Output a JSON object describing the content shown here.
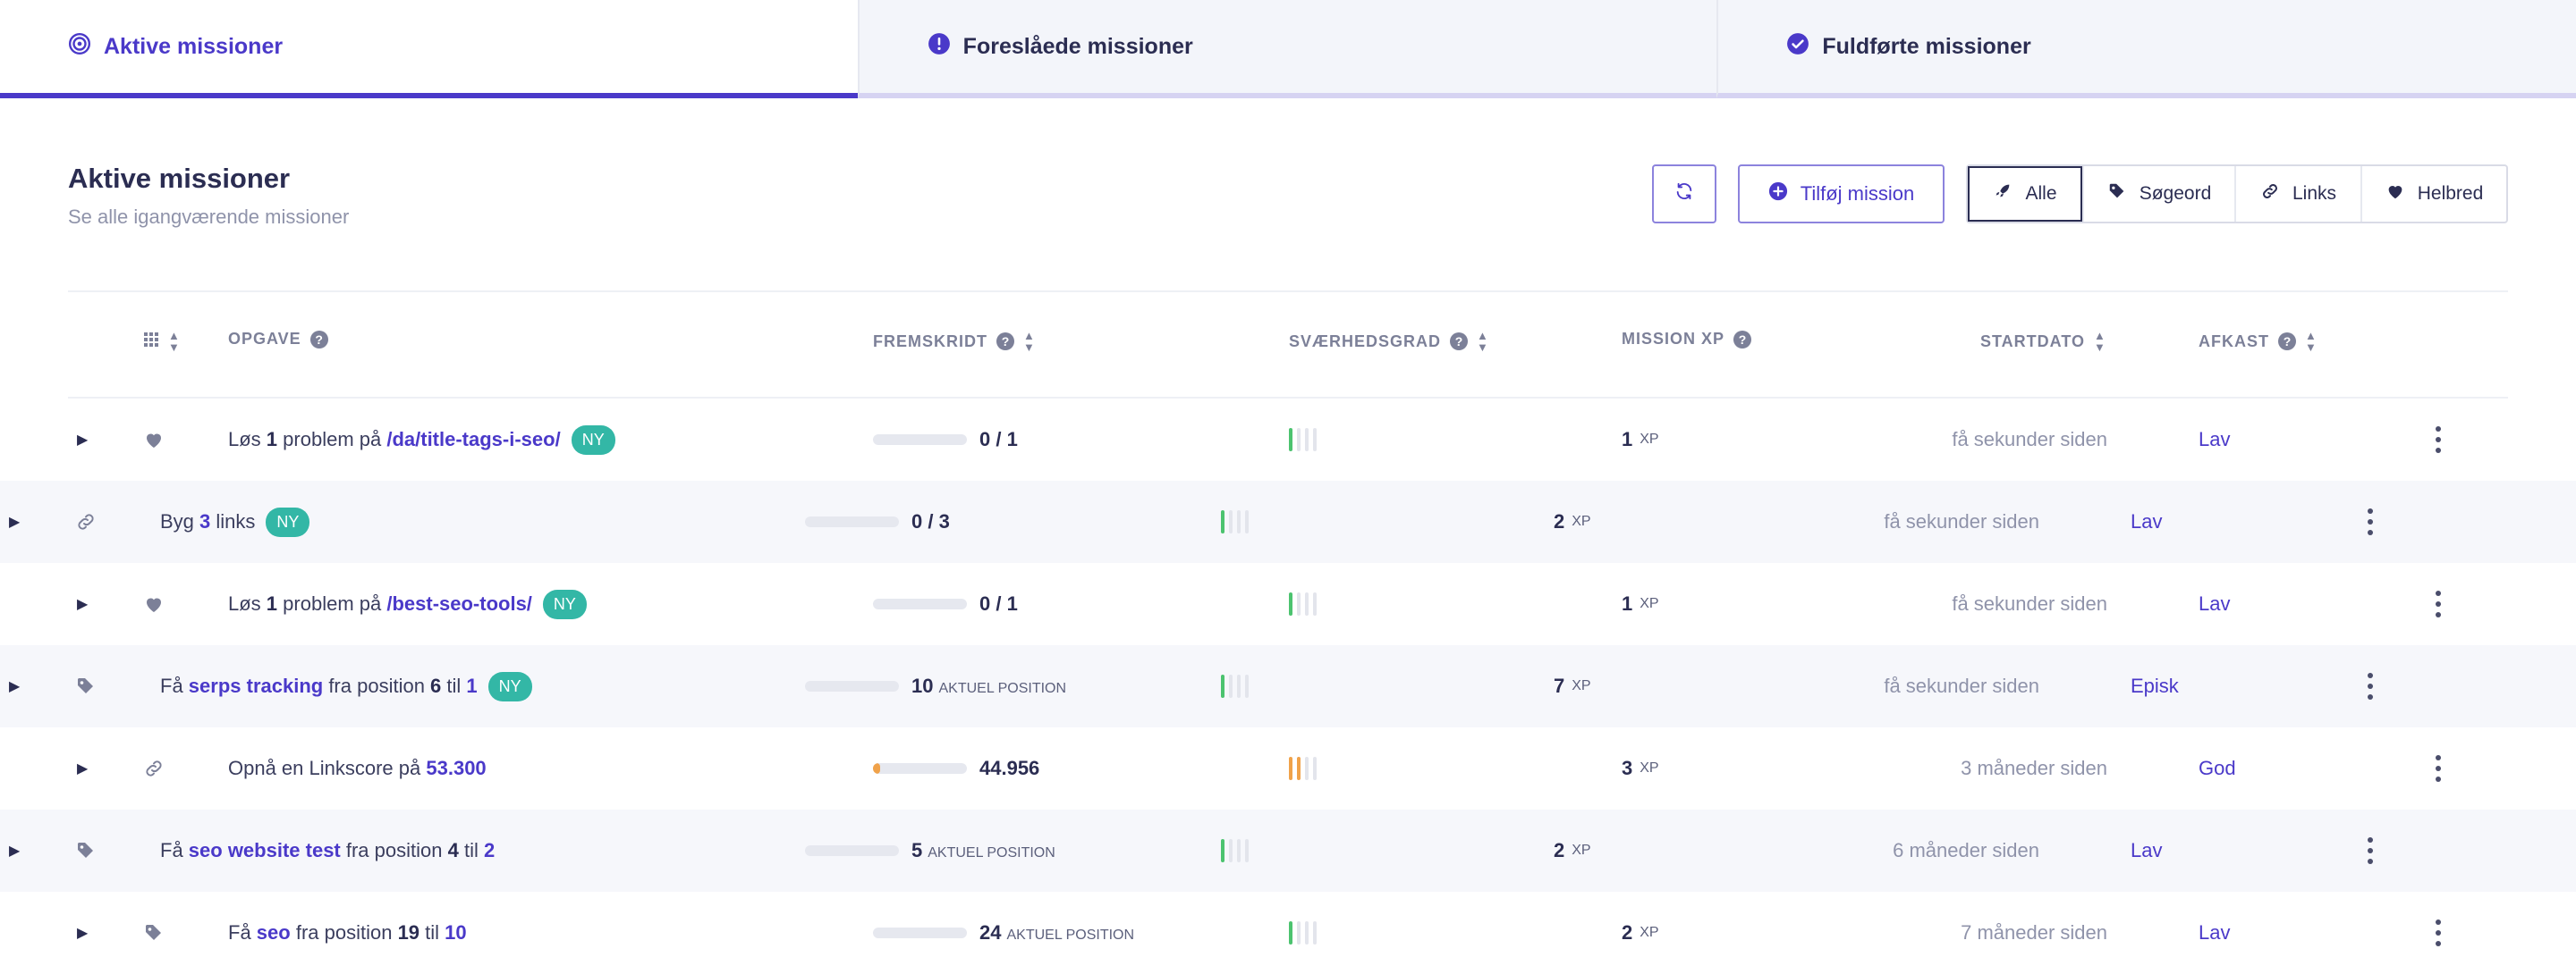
{
  "tabs": [
    {
      "label": "Aktive missioner",
      "active": true,
      "icon": "target-icon"
    },
    {
      "label": "Foreslåede missioner",
      "active": false,
      "icon": "alert-circle-icon"
    },
    {
      "label": "Fuldførte missioner",
      "active": false,
      "icon": "check-circle-icon"
    }
  ],
  "header": {
    "title": "Aktive missioner",
    "subtitle": "Se alle igangværende missioner"
  },
  "toolbar": {
    "add_label": "Tilføj mission",
    "filters": [
      "Alle",
      "Søgeord",
      "Links",
      "Helbred"
    ],
    "active_filter": "Alle"
  },
  "columns": {
    "task": "OPGAVE",
    "progress": "FREMSKRIDT",
    "difficulty": "SVÆRHEDSGRAD",
    "xp": "MISSION XP",
    "start": "STARTDATO",
    "return": "AFKAST"
  },
  "colors": {
    "accent": "#4a39c9",
    "badge": "#33b7a6",
    "difficulty_green": "#4cc36f",
    "difficulty_orange": "#f0a24a"
  },
  "rows": [
    {
      "icon": "heart-icon",
      "task": [
        [
          "Løs ",
          "t"
        ],
        [
          "1",
          "n"
        ],
        [
          " problem på ",
          "t"
        ],
        [
          "/da/title-tags-i-seo/",
          "h"
        ]
      ],
      "badge": "NY",
      "progress_value": "0",
      "progress_target": "/ 1",
      "progress_unit": "",
      "progress_fraction": 0,
      "difficulty_level": 1,
      "difficulty_color": "#4cc36f",
      "xp": "1",
      "xp_unit": "XP",
      "start": "få sekunder siden",
      "return": "Lav"
    },
    {
      "icon": "link-icon",
      "task": [
        [
          "Byg ",
          "t"
        ],
        [
          "3",
          "h"
        ],
        [
          " links",
          "t"
        ]
      ],
      "badge": "NY",
      "progress_value": "0",
      "progress_target": "/ 3",
      "progress_unit": "",
      "progress_fraction": 0,
      "difficulty_level": 1,
      "difficulty_color": "#4cc36f",
      "xp": "2",
      "xp_unit": "XP",
      "start": "få sekunder siden",
      "return": "Lav"
    },
    {
      "icon": "heart-icon",
      "task": [
        [
          "Løs ",
          "t"
        ],
        [
          "1",
          "n"
        ],
        [
          " problem på ",
          "t"
        ],
        [
          "/best-seo-tools/",
          "h"
        ]
      ],
      "badge": "NY",
      "progress_value": "0",
      "progress_target": "/ 1",
      "progress_unit": "",
      "progress_fraction": 0,
      "difficulty_level": 1,
      "difficulty_color": "#4cc36f",
      "xp": "1",
      "xp_unit": "XP",
      "start": "få sekunder siden",
      "return": "Lav"
    },
    {
      "icon": "tag-icon",
      "task": [
        [
          "Få ",
          "t"
        ],
        [
          "serps tracking",
          "h"
        ],
        [
          " fra position ",
          "t"
        ],
        [
          "6",
          "n"
        ],
        [
          " til ",
          "t"
        ],
        [
          "1",
          "h"
        ]
      ],
      "badge": "NY",
      "progress_value": "10",
      "progress_target": "",
      "progress_unit": "AKTUEL POSITION",
      "progress_fraction": 0,
      "difficulty_level": 1,
      "difficulty_color": "#4cc36f",
      "xp": "7",
      "xp_unit": "XP",
      "start": "få sekunder siden",
      "return": "Episk"
    },
    {
      "icon": "link-icon",
      "task": [
        [
          "Opnå en Linkscore på ",
          "t"
        ],
        [
          "53.300",
          "h"
        ]
      ],
      "badge": "",
      "progress_value": "44.956",
      "progress_target": "",
      "progress_unit": "",
      "progress_fraction": 0.08,
      "difficulty_level": 2,
      "difficulty_color": "#f0a24a",
      "xp": "3",
      "xp_unit": "XP",
      "start": "3 måneder siden",
      "return": "God"
    },
    {
      "icon": "tag-icon",
      "task": [
        [
          "Få ",
          "t"
        ],
        [
          "seo website test",
          "h"
        ],
        [
          " fra position ",
          "t"
        ],
        [
          "4",
          "n"
        ],
        [
          " til ",
          "t"
        ],
        [
          "2",
          "h"
        ]
      ],
      "badge": "",
      "progress_value": "5",
      "progress_target": "",
      "progress_unit": "AKTUEL POSITION",
      "progress_fraction": 0,
      "difficulty_level": 1,
      "difficulty_color": "#4cc36f",
      "xp": "2",
      "xp_unit": "XP",
      "start": "6 måneder siden",
      "return": "Lav"
    },
    {
      "icon": "tag-icon",
      "task": [
        [
          "Få ",
          "t"
        ],
        [
          "seo",
          "h"
        ],
        [
          " fra position ",
          "t"
        ],
        [
          "19",
          "n"
        ],
        [
          " til ",
          "t"
        ],
        [
          "10",
          "h"
        ]
      ],
      "badge": "",
      "progress_value": "24",
      "progress_target": "",
      "progress_unit": "AKTUEL POSITION",
      "progress_fraction": 0,
      "difficulty_level": 1,
      "difficulty_color": "#4cc36f",
      "xp": "2",
      "xp_unit": "XP",
      "start": "7 måneder siden",
      "return": "Lav"
    }
  ]
}
